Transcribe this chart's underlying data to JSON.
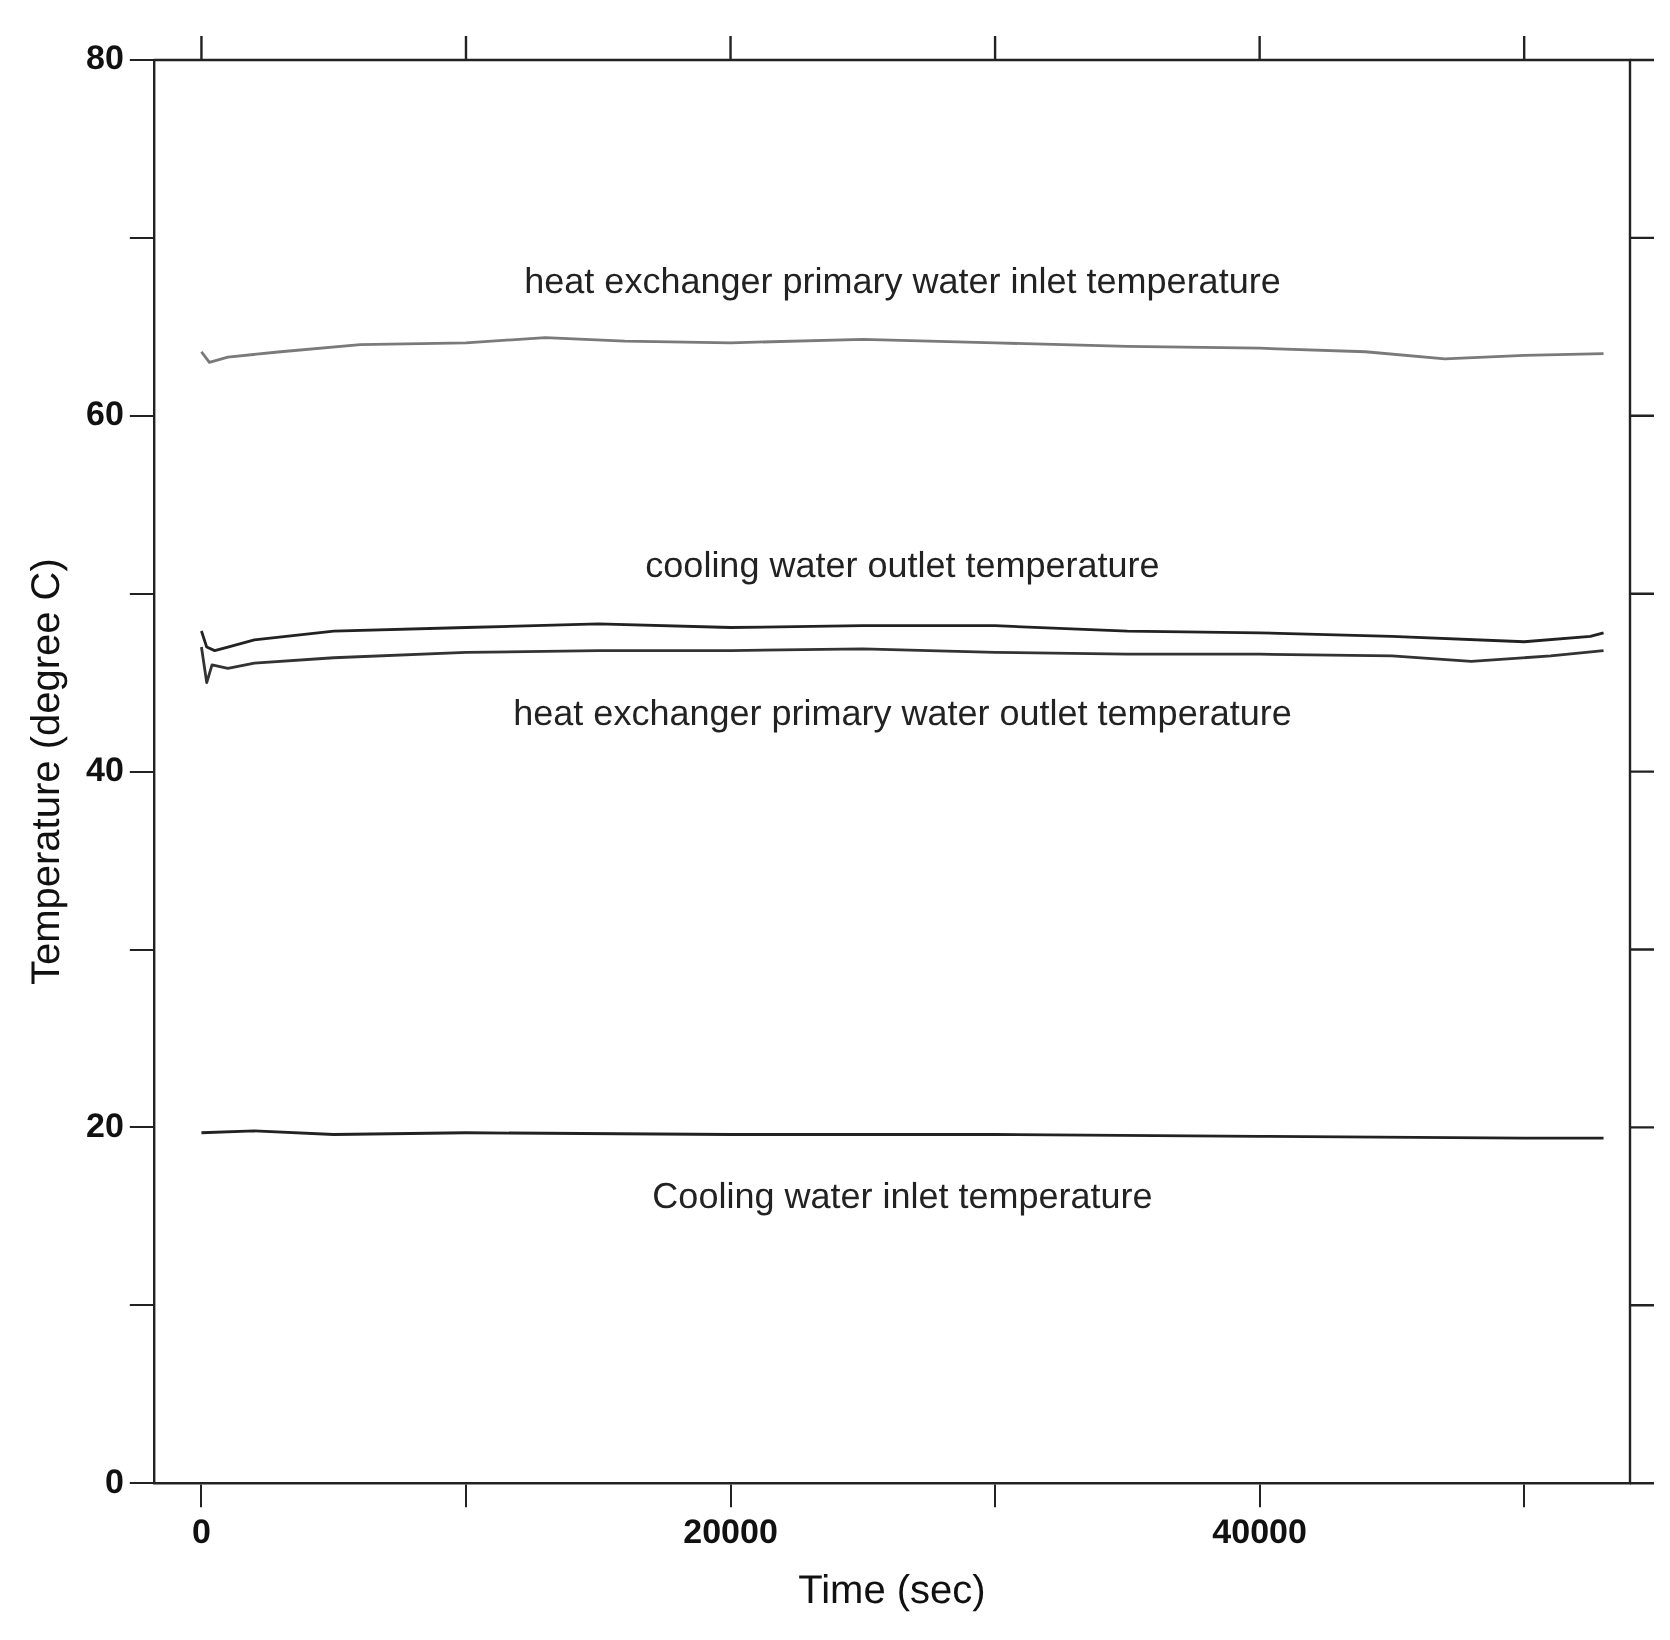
{
  "chart_data": {
    "type": "line",
    "xlabel": "Time (sec)",
    "ylabel": "Temperature (degree C)",
    "xlim": [
      -1800,
      54000
    ],
    "xticks": [
      0,
      {
        "value": 10000,
        "label": null
      },
      20000,
      {
        "value": 30000,
        "label": null
      },
      40000,
      {
        "value": 50000,
        "label": null
      }
    ],
    "ylim": [
      0,
      80
    ],
    "yticks": [
      0,
      {
        "value": 10,
        "label": null
      },
      20,
      {
        "value": 30,
        "label": null
      },
      40,
      {
        "value": 50,
        "label": null
      },
      60,
      {
        "value": 70,
        "label": null
      },
      80
    ],
    "grid": false,
    "legend": false,
    "marker": "none",
    "line_style": "solid",
    "series": [
      {
        "name": "heat exchanger primary water inlet temperature",
        "color": "#7a7a7a",
        "x": [
          0,
          300,
          1000,
          3000,
          6000,
          10000,
          13000,
          16000,
          20000,
          25000,
          30000,
          35000,
          40000,
          44000,
          47000,
          50000,
          53000
        ],
        "values": [
          63.6,
          63.0,
          63.3,
          63.6,
          64.0,
          64.1,
          64.4,
          64.2,
          64.1,
          64.3,
          64.1,
          63.9,
          63.8,
          63.6,
          63.2,
          63.4,
          63.5
        ]
      },
      {
        "name": "cooling water outlet temperature",
        "color": "#222222",
        "x": [
          0,
          200,
          500,
          1000,
          2000,
          5000,
          10000,
          15000,
          20000,
          25000,
          30000,
          35000,
          40000,
          45000,
          50000,
          52500,
          53000
        ],
        "values": [
          47.9,
          47.0,
          46.8,
          47.0,
          47.4,
          47.9,
          48.1,
          48.3,
          48.1,
          48.2,
          48.2,
          47.9,
          47.8,
          47.6,
          47.3,
          47.6,
          47.8
        ]
      },
      {
        "name": "heat exchanger primary water outlet temperature",
        "color": "#333333",
        "x": [
          0,
          200,
          400,
          1000,
          2000,
          5000,
          10000,
          15000,
          20000,
          25000,
          30000,
          35000,
          40000,
          45000,
          48000,
          51000,
          53000
        ],
        "values": [
          47.0,
          45.0,
          46.0,
          45.8,
          46.1,
          46.4,
          46.7,
          46.8,
          46.8,
          46.9,
          46.7,
          46.6,
          46.6,
          46.5,
          46.2,
          46.5,
          46.8
        ]
      },
      {
        "name": "Cooling water inlet temperature",
        "color": "#222222",
        "x": [
          0,
          2000,
          5000,
          10000,
          20000,
          30000,
          40000,
          50000,
          53000
        ],
        "values": [
          19.7,
          19.8,
          19.6,
          19.7,
          19.6,
          19.6,
          19.5,
          19.4,
          19.4
        ]
      }
    ]
  }
}
